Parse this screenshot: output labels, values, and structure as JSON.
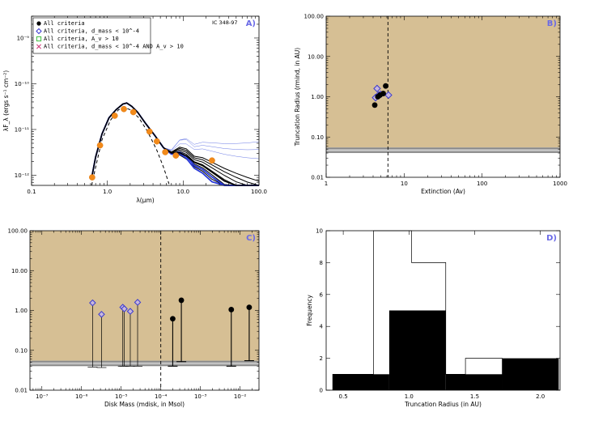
{
  "chart_data": [
    {
      "panel": "A)",
      "type": "line",
      "annotation": "IC 348-97",
      "xlabel": "λ(μm)",
      "ylabel": "λF_λ (ergs s⁻¹ cm⁻²)",
      "xscale": "log",
      "yscale": "log",
      "xlim": [
        0.1,
        100
      ],
      "ylim": [
        6e-13,
        3e-09
      ],
      "xticks": [
        0.1,
        1,
        10,
        100
      ],
      "xticklabels": [
        "0.1",
        "1.0",
        "10.0",
        "100.0"
      ],
      "yticks": [
        1e-12,
        1e-11,
        1e-10,
        1e-09
      ],
      "yticklabels": [
        "10⁻¹²",
        "10⁻¹¹",
        "10⁻¹⁰",
        "10⁻⁹"
      ],
      "legend": [
        {
          "label": "All criteria",
          "marker": "filled-circle",
          "color": "#000000"
        },
        {
          "label": "All criteria, d_mass < 10^-4",
          "marker": "diamond",
          "color": "#3a3ad0"
        },
        {
          "label": "All criteria, A_v > 10",
          "marker": "square",
          "color": "#3fbf3f"
        },
        {
          "label": "All criteria, d_mass < 10^-4 AND A_v > 10",
          "marker": "x",
          "color": "#d03a7a"
        }
      ],
      "observed_points": {
        "x": [
          0.63,
          0.8,
          1.25,
          1.65,
          2.2,
          3.6,
          4.5,
          5.8,
          8.0,
          24.0
        ],
        "y": [
          9e-13,
          4.5e-12,
          2e-11,
          2.8e-11,
          2.4e-11,
          9e-12,
          5.5e-12,
          3.2e-12,
          2.7e-12,
          2.1e-12
        ]
      },
      "photosphere": {
        "x": [
          0.62,
          0.7,
          0.85,
          1.1,
          1.4,
          1.7,
          2.0,
          2.6,
          3.4,
          4.5,
          5.5,
          6.5
        ],
        "y": [
          6e-13,
          1.5e-12,
          6e-12,
          1.6e-11,
          2.7e-11,
          3e-11,
          2.7e-11,
          1.8e-11,
          9e-12,
          3.5e-12,
          1.5e-12,
          6.5e-13
        ]
      },
      "model_colors": {
        "black": "#000000",
        "blue": "#2a3ad8",
        "thin_blue": "#6a7ae6"
      }
    },
    {
      "panel": "B)",
      "type": "scatter",
      "xlabel": "Extinction (Av)",
      "ylabel": "Truncation Radius (rmind, in AU)",
      "xscale": "log",
      "yscale": "log",
      "xlim": [
        1,
        1000
      ],
      "ylim": [
        0.01,
        100
      ],
      "xticklabels": [
        "1",
        "10",
        "100",
        "1000"
      ],
      "yticklabels": [
        "0.01",
        "0.10",
        "1.00",
        "10.00",
        "100.00"
      ],
      "dashed_vline_x": 6.2,
      "shade_band_y": [
        0.04,
        0.055
      ],
      "all_criteria": {
        "x": [
          4.2,
          4.6,
          4.9,
          5.4,
          5.8
        ],
        "y": [
          0.62,
          1.0,
          1.1,
          1.2,
          1.85
        ]
      },
      "dmass_lt_1e-4": {
        "x": [
          4.3,
          4.5,
          4.7,
          5.0,
          6.3
        ],
        "y": [
          0.95,
          1.6,
          1.1,
          1.15,
          1.1
        ]
      }
    },
    {
      "panel": "C)",
      "type": "scatter",
      "xlabel": "Disk Mass (mdisk, in Msol)",
      "ylabel": "",
      "xscale": "log",
      "yscale": "log",
      "xlim": [
        5e-08,
        0.03
      ],
      "ylim": [
        0.01,
        100
      ],
      "xticklabels": [
        "10⁻⁷",
        "10⁻⁶",
        "10⁻⁵",
        "10⁻⁴",
        "10⁻³",
        "10⁻²"
      ],
      "yticklabels": [
        "0.01",
        "0.10",
        "1.00",
        "10.00",
        "100.00"
      ],
      "dashed_vline_x": 0.0001,
      "shade_band_y": [
        0.04,
        0.055
      ],
      "points": [
        {
          "x": 1.9e-06,
          "y": 1.55,
          "low": 0.038,
          "group": "diamond"
        },
        {
          "x": 3.2e-06,
          "y": 0.8,
          "low": 0.037,
          "group": "diamond"
        },
        {
          "x": 1.1e-05,
          "y": 1.2,
          "low": 0.04,
          "group": "diamond"
        },
        {
          "x": 1.2e-05,
          "y": 1.1,
          "low": 0.04,
          "group": "diamond"
        },
        {
          "x": 1.7e-05,
          "y": 0.95,
          "low": 0.04,
          "group": "diamond"
        },
        {
          "x": 2.6e-05,
          "y": 1.6,
          "low": 0.04,
          "group": "diamond"
        },
        {
          "x": 0.0002,
          "y": 0.62,
          "low": 0.04,
          "group": "filled"
        },
        {
          "x": 0.00033,
          "y": 1.8,
          "low": 0.052,
          "group": "filled"
        },
        {
          "x": 0.006,
          "y": 1.05,
          "low": 0.04,
          "group": "filled"
        },
        {
          "x": 0.017,
          "y": 1.2,
          "low": 0.055,
          "group": "filled"
        }
      ]
    },
    {
      "panel": "D)",
      "type": "bar",
      "xlabel": "Truncation Radius (in AU)",
      "ylabel": "Frequency",
      "xlim": [
        0.37,
        2.15
      ],
      "ylim": [
        0,
        10
      ],
      "xticks": [
        0.5,
        1.0,
        1.5,
        2.0
      ],
      "xticklabels": [
        "0.5",
        "1.0",
        "1.5",
        "2.0"
      ],
      "yticks": [
        0,
        2,
        4,
        6,
        8,
        10
      ],
      "yticklabels": [
        "0",
        "2",
        "4",
        "6",
        "8",
        "10"
      ],
      "filled_histogram": {
        "edges": [
          0.42,
          0.85,
          1.28,
          1.71,
          2.14
        ],
        "counts": [
          1,
          5,
          1,
          2
        ]
      },
      "outline_histogram": {
        "edges": [
          0.42,
          0.73,
          0.88,
          1.02,
          1.28,
          1.43,
          1.71
        ],
        "counts": [
          1,
          10,
          10,
          8,
          1,
          2
        ]
      }
    }
  ],
  "colors": {
    "shade": "#d6bf94",
    "band": "#b4b4b4",
    "marker_blue": "#3a3ad0",
    "marker_fill": "#c8b7dc",
    "orange": "#f28a1a",
    "label_blue": "#6a6ae6"
  }
}
